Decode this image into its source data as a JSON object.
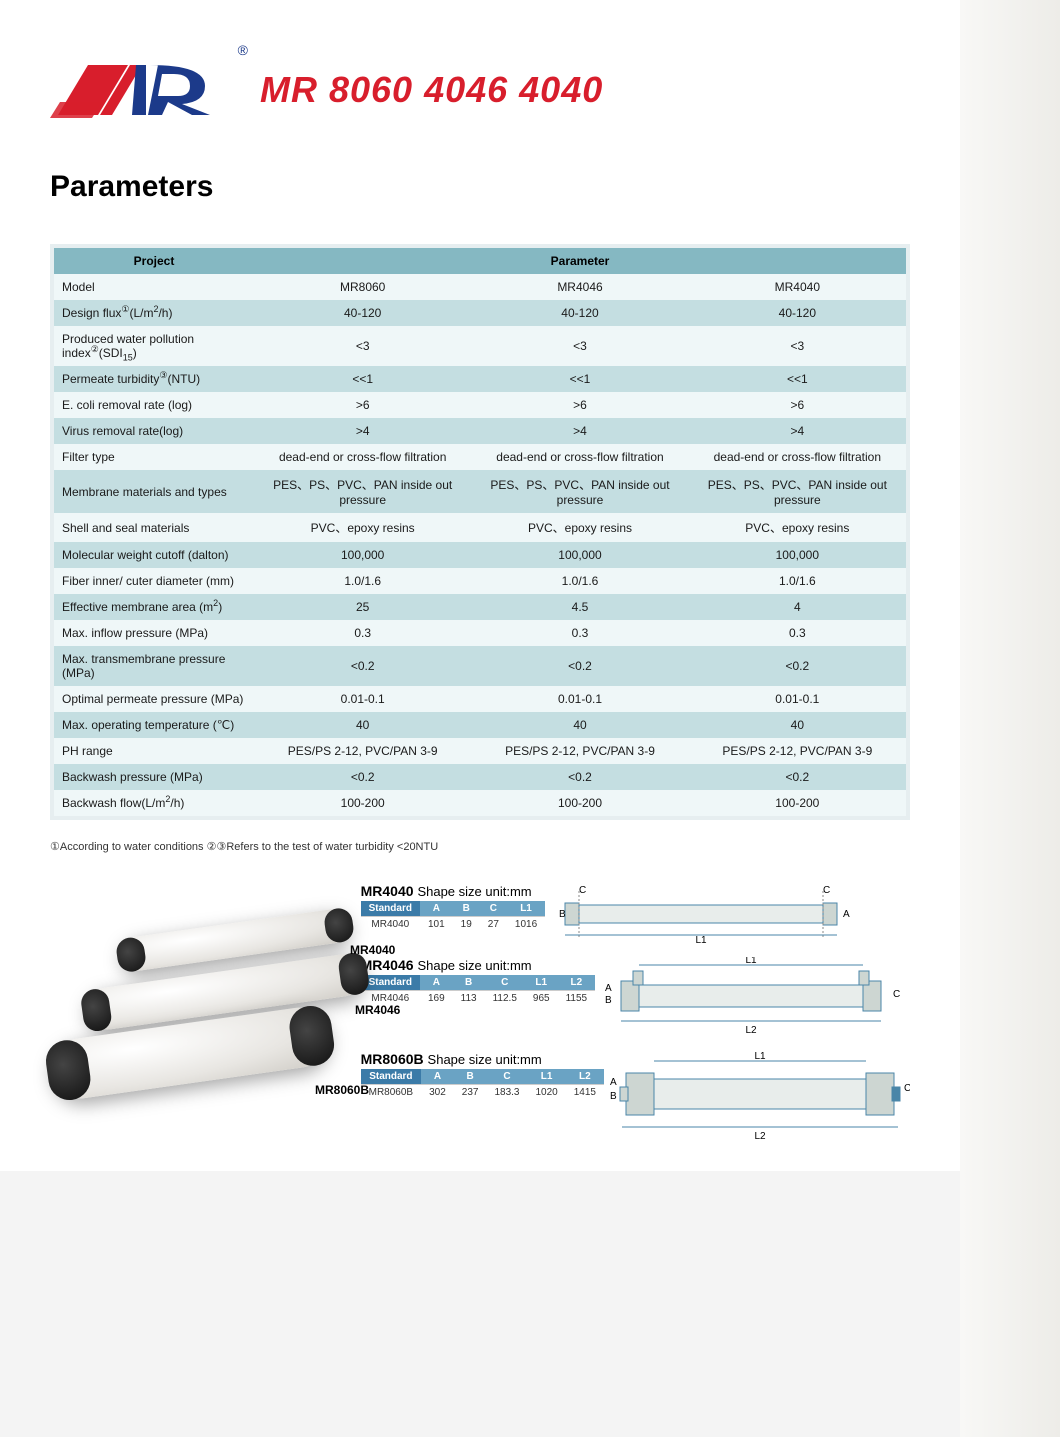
{
  "header": {
    "logo_reg": "®",
    "title": "MR 8060 4046 4040"
  },
  "section_title": "Parameters",
  "table": {
    "header_bg": "#85b8c2",
    "row_even_bg": "#c4dee1",
    "row_odd_bg": "#eff7f8",
    "col_project": "Project",
    "col_parameter": "Parameter",
    "rows": [
      {
        "label": "Model",
        "v": [
          "MR8060",
          "MR4046",
          "MR4040"
        ]
      },
      {
        "label_html": "Design flux<sup>①</sup>(L/m<sup>2</sup>/h)",
        "v": [
          "40-120",
          "40-120",
          "40-120"
        ]
      },
      {
        "label_html": "Produced water pollution index<sup>②</sup>(SDI<sub>15</sub>)",
        "v": [
          "<3",
          "<3",
          "<3"
        ]
      },
      {
        "label_html": "Permeate turbidity<sup>③</sup>(NTU)",
        "v": [
          "<<1",
          "<<1",
          "<<1"
        ]
      },
      {
        "label": "E. coli removal rate (log)",
        "v": [
          ">6",
          ">6",
          ">6"
        ]
      },
      {
        "label": "Virus removal rate(log)",
        "v": [
          ">4",
          ">4",
          ">4"
        ]
      },
      {
        "label": "Filter type",
        "v": [
          "dead-end or cross-flow filtration",
          "dead-end or cross-flow filtration",
          "dead-end or cross-flow filtration"
        ]
      },
      {
        "label": "Membrane materials and types",
        "v": [
          "PES、PS、PVC、PAN inside out pressure",
          "PES、PS、PVC、PAN inside out pressure",
          "PES、PS、PVC、PAN inside out pressure"
        ]
      },
      {
        "label": "Shell and seal materials",
        "v": [
          "PVC、epoxy resins",
          "PVC、epoxy resins",
          "PVC、epoxy resins"
        ]
      },
      {
        "label": "Molecular weight cutoff (dalton)",
        "v": [
          "100,000",
          "100,000",
          "100,000"
        ]
      },
      {
        "label": "Fiber inner/ cuter diameter (mm)",
        "v": [
          "1.0/1.6",
          "1.0/1.6",
          "1.0/1.6"
        ]
      },
      {
        "label_html": "Effective membrane area (m<sup>2</sup>)",
        "v": [
          "25",
          "4.5",
          "4"
        ]
      },
      {
        "label": "Max. inflow pressure (MPa)",
        "v": [
          "0.3",
          "0.3",
          "0.3"
        ]
      },
      {
        "label": "Max. transmembrane pressure (MPa)",
        "v": [
          "<0.2",
          "<0.2",
          "<0.2"
        ]
      },
      {
        "label": "Optimal permeate pressure (MPa)",
        "v": [
          "0.01-0.1",
          "0.01-0.1",
          "0.01-0.1"
        ]
      },
      {
        "label": "Max. operating temperature (℃)",
        "v": [
          "40",
          "40",
          "40"
        ]
      },
      {
        "label": "PH range",
        "v": [
          "PES/PS 2-12, PVC/PAN 3-9",
          "PES/PS 2-12, PVC/PAN 3-9",
          "PES/PS 2-12, PVC/PAN 3-9"
        ]
      },
      {
        "label": "Backwash pressure (MPa)",
        "v": [
          "<0.2",
          "<0.2",
          "<0.2"
        ]
      },
      {
        "label_html": "Backwash flow(L/m<sup>2</sup>/h)",
        "v": [
          "100-200",
          "100-200",
          "100-200"
        ]
      }
    ]
  },
  "footnote": "①According to water conditions ②③Refers to the test of water turbidity <20NTU",
  "photo_labels": {
    "l1": "MR4040",
    "l2": "MR4046",
    "l3": "MR8060B"
  },
  "specs": [
    {
      "title": "MR4040",
      "subtitle": "Shape size unit:mm",
      "cols": [
        "Standard",
        "A",
        "B",
        "C",
        "L1"
      ],
      "row": [
        "MR4040",
        "101",
        "19",
        "27",
        "1016"
      ],
      "schematic": {
        "type": "single",
        "labels": {
          "A": "A",
          "B": "B",
          "C": "C",
          "L1": "L1"
        }
      }
    },
    {
      "title": "MR4046",
      "subtitle": "Shape size unit:mm",
      "cols": [
        "Standard",
        "A",
        "B",
        "C",
        "L1",
        "L2"
      ],
      "row": [
        "MR4046",
        "169",
        "113",
        "112.5",
        "965",
        "1155"
      ],
      "schematic": {
        "type": "double_top",
        "labels": {
          "A": "A",
          "B": "B",
          "C": "C",
          "L1": "L1",
          "L2": "L2"
        }
      }
    },
    {
      "title": "MR8060B",
      "subtitle": "Shape size unit:mm",
      "cols": [
        "Standard",
        "A",
        "B",
        "C",
        "L1",
        "L2"
      ],
      "row": [
        "MR8060B",
        "302",
        "237",
        "183.3",
        "1020",
        "1415"
      ],
      "schematic": {
        "type": "double_thick",
        "labels": {
          "A": "A",
          "B": "B",
          "C": "C",
          "L1": "L1",
          "L2": "L2"
        }
      }
    }
  ],
  "colors": {
    "brand_red": "#d81e2c",
    "brand_blue": "#1c3a8a",
    "dim_header": "#6aa3c4",
    "schematic_stroke": "#4a86a8",
    "schematic_fill1": "#e8edeb",
    "schematic_fill2": "#cdd6d2"
  }
}
